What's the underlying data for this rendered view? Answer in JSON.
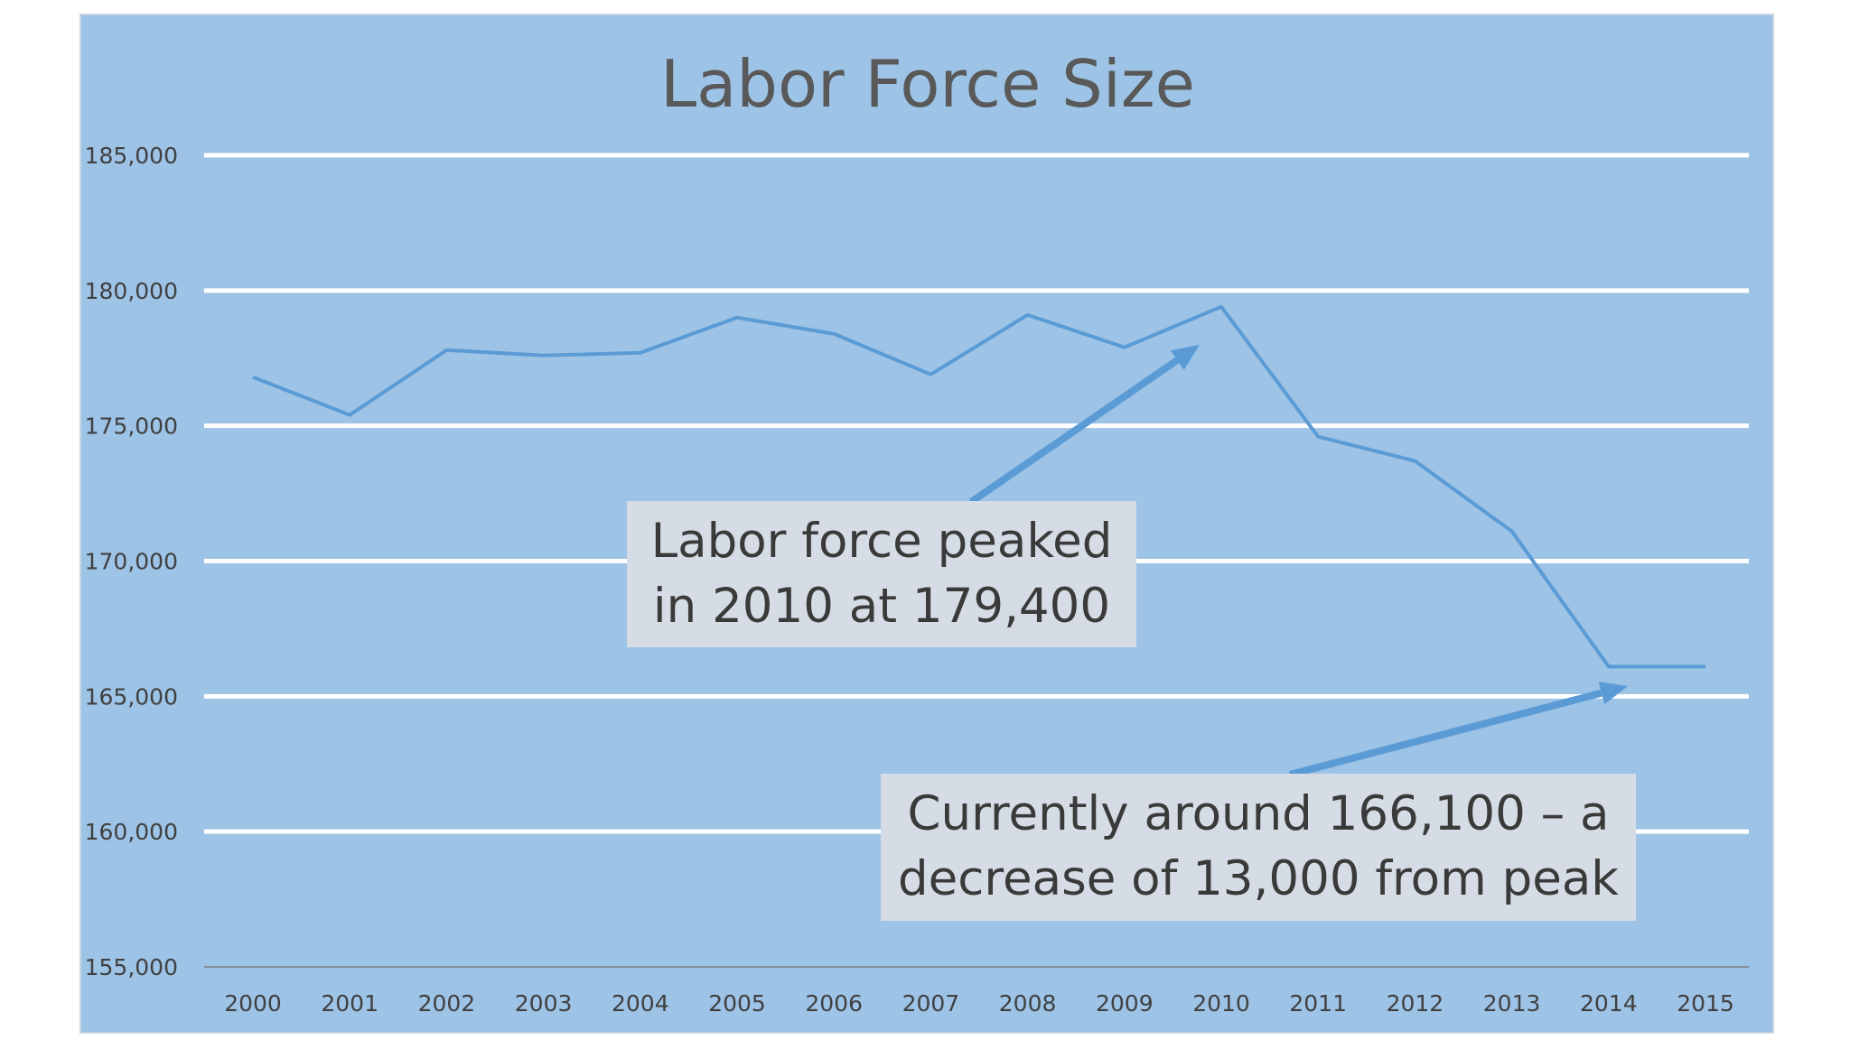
{
  "chart_data": {
    "type": "line",
    "title": "Labor Force Size",
    "xlabel": "",
    "ylabel": "",
    "categories": [
      "2000",
      "2001",
      "2002",
      "2003",
      "2004",
      "2005",
      "2006",
      "2007",
      "2008",
      "2009",
      "2010",
      "2011",
      "2012",
      "2013",
      "2014",
      "2015"
    ],
    "series": [
      {
        "values": [
          176800,
          175400,
          177800,
          177600,
          177700,
          179000,
          178400,
          176900,
          179100,
          177900,
          179400,
          174600,
          173700,
          171100,
          166100,
          166100
        ]
      }
    ],
    "ylim": [
      155000,
      185000
    ],
    "yticks": [
      "185,000",
      "180,000",
      "175,000",
      "170,000",
      "165,000",
      "160,000",
      "155,000"
    ],
    "grid": true,
    "legend": "none",
    "annotations": [
      {
        "line1": "Labor force peaked",
        "line2": "in 2010 at 179,400"
      },
      {
        "line1": "Currently around 166,100 – a",
        "line2": "decrease of 13,000 from peak"
      }
    ]
  },
  "colors": {
    "background": "#9dc3e6",
    "line": "#5b9bd5",
    "gridline": "#ffffff",
    "callout_bg": "#d6dce5",
    "text": "#404040"
  }
}
